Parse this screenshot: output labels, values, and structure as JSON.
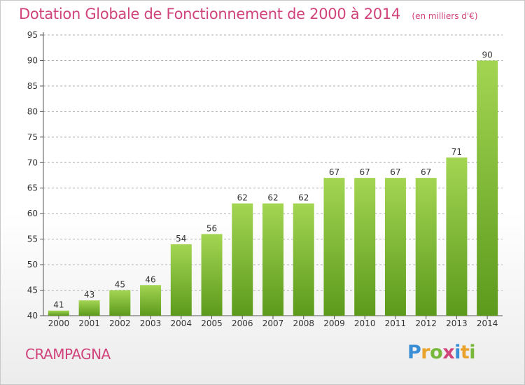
{
  "title": "Dotation Globale de Fonctionnement de 2000 à 2014",
  "subtitle": "(en milliers d'€)",
  "commune": "CRAMPAGNA",
  "logo_text": "Proxiti",
  "colors": {
    "bar_light": "#a3d552",
    "bar_dark": "#5c9a1c",
    "title": "#d0437b",
    "grid": "#aaaaaa"
  },
  "chart_data": {
    "type": "bar",
    "categories": [
      "2000",
      "2001",
      "2002",
      "2003",
      "2004",
      "2005",
      "2006",
      "2007",
      "2008",
      "2009",
      "2010",
      "2011",
      "2012",
      "2013",
      "2014"
    ],
    "values": [
      41,
      43,
      45,
      46,
      54,
      56,
      62,
      62,
      62,
      67,
      67,
      67,
      67,
      71,
      90
    ],
    "ylim": [
      40,
      95
    ],
    "yticks": [
      40,
      45,
      50,
      55,
      60,
      65,
      70,
      75,
      80,
      85,
      90,
      95
    ],
    "grid": "horizontal dashed",
    "data_labels": true,
    "xlabel": "",
    "ylabel": ""
  }
}
